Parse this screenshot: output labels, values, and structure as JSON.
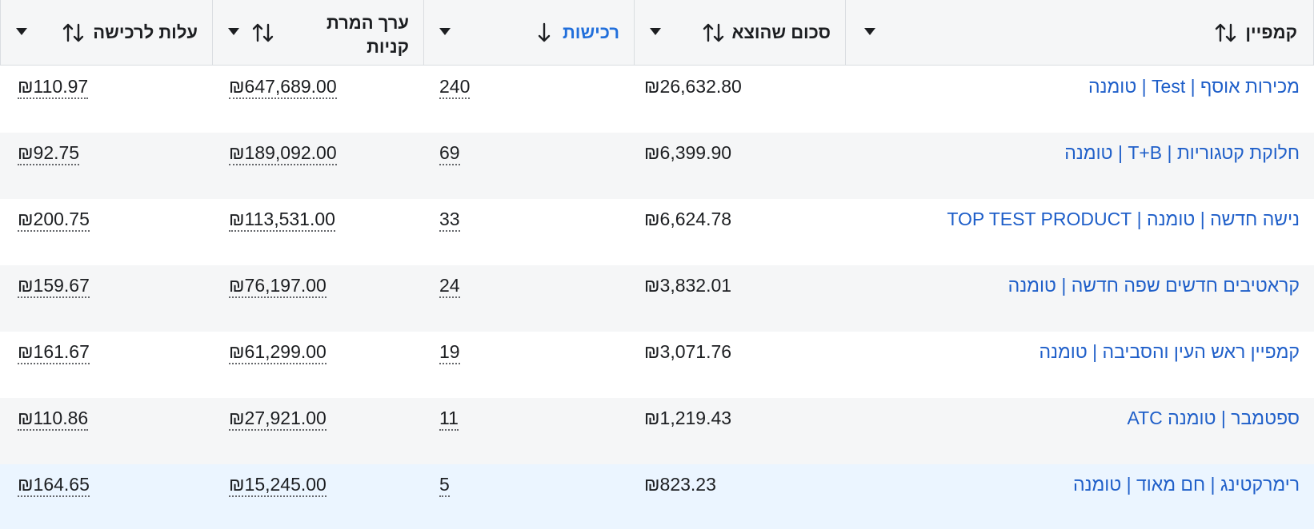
{
  "currency": "₪",
  "columns": [
    {
      "key": "cpa",
      "label": "עלות לרכישה"
    },
    {
      "key": "value",
      "label": "ערך המרת קניות"
    },
    {
      "key": "purchases",
      "label": "רכישות"
    },
    {
      "key": "spent",
      "label": "סכום שהוצא"
    },
    {
      "key": "campaign",
      "label": "קמפיין"
    }
  ],
  "rows": [
    {
      "campaign": "מכירות אוסף | Test | טומנה",
      "spent": "₪26,632.80",
      "purchases": "240",
      "value": "₪647,689.00",
      "cpa": "₪110.97"
    },
    {
      "campaign": "חלוקת קטגוריות | T+B | טומנה",
      "spent": "₪6,399.90",
      "purchases": "69",
      "value": "₪189,092.00",
      "cpa": "₪92.75"
    },
    {
      "campaign": "נישה חדשה | טומנה | TOP TEST PRODUCT",
      "spent": "₪6,624.78",
      "purchases": "33",
      "value": "₪113,531.00",
      "cpa": "₪200.75"
    },
    {
      "campaign": "קראטיבים חדשים שפה חדשה | טומנה",
      "spent": "₪3,832.01",
      "purchases": "24",
      "value": "₪76,197.00",
      "cpa": "₪159.67"
    },
    {
      "campaign": "קמפיין ראש העין והסביבה | טומנה",
      "spent": "₪3,071.76",
      "purchases": "19",
      "value": "₪61,299.00",
      "cpa": "₪161.67"
    },
    {
      "campaign": "ספטמבר | טומנה ATC",
      "spent": "₪1,219.43",
      "purchases": "11",
      "value": "₪27,921.00",
      "cpa": "₪110.86"
    },
    {
      "campaign": "רימרקטינג | חם מאוד | טומנה",
      "spent": "₪823.23",
      "purchases": "5",
      "value": "₪15,245.00",
      "cpa": "₪164.65"
    }
  ],
  "colors": {
    "link": "#1f5fc9",
    "header_bg": "#f5f6f7",
    "row_alt": "#f5f6f7",
    "row_hover": "#ebf5ff"
  },
  "icons": {
    "sort": "sort-arrows-icon",
    "sort_desc": "sort-down-arrow-icon",
    "dropdown": "caret-down-icon"
  }
}
